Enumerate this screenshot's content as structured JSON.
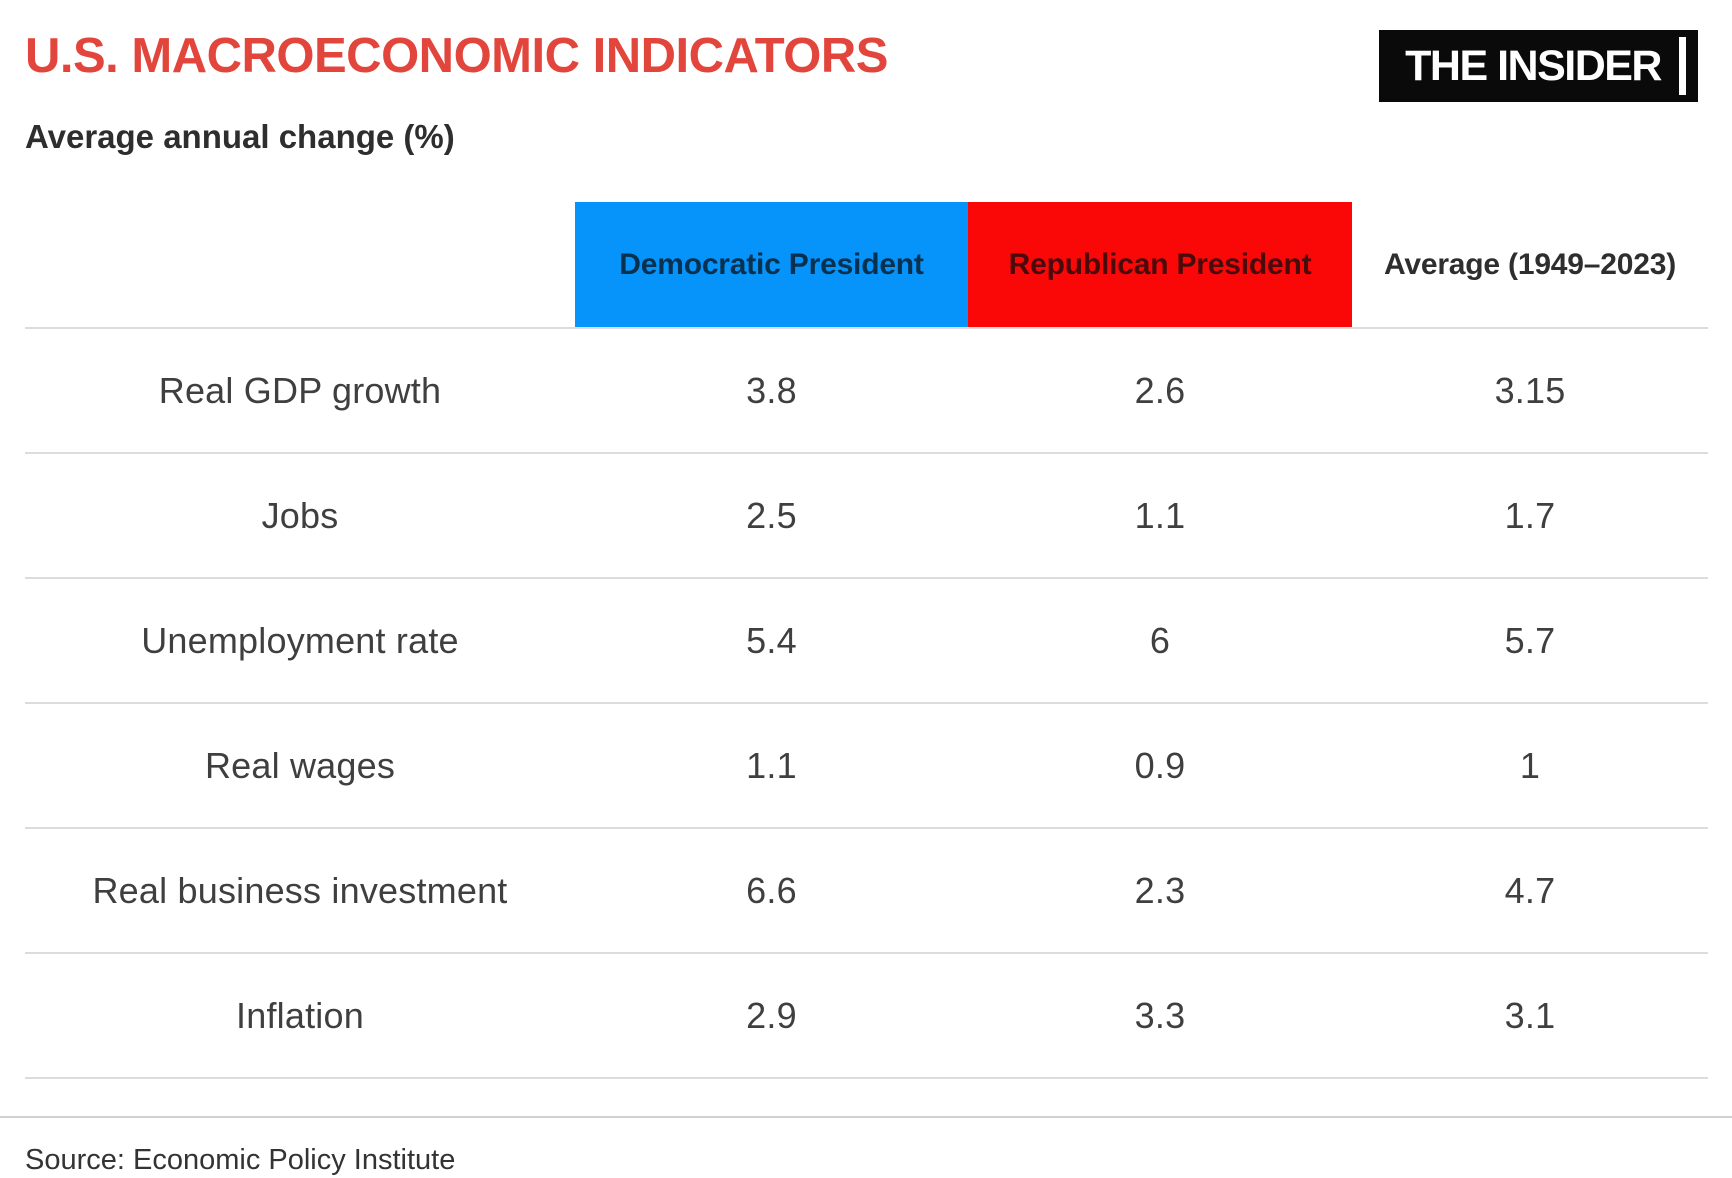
{
  "page": {
    "title": "U.S. MACROECONOMIC INDICATORS",
    "subtitle": "Average annual change (%)",
    "logo_text": "THE INSIDER",
    "source": "Source: Economic Policy Institute"
  },
  "colors": {
    "title_red": "#e2453c",
    "dem_blue": "#0694fb",
    "rep_red": "#fa0808",
    "text_gray": "#3f3f3f",
    "rule_gray": "#dcdcdc",
    "rule_dark": "#d2d2d2",
    "logo_bg": "#0a0a0a",
    "logo_text": "#ffffff"
  },
  "table": {
    "columns": [
      "",
      "Democratic President",
      "Republican President",
      "Average (1949–2023)"
    ],
    "rows": [
      {
        "label": "Real GDP growth",
        "dem": "3.8",
        "rep": "2.6",
        "avg": "3.15"
      },
      {
        "label": "Jobs",
        "dem": "2.5",
        "rep": "1.1",
        "avg": "1.7"
      },
      {
        "label": "Unemployment rate",
        "dem": "5.4",
        "rep": "6",
        "avg": "5.7"
      },
      {
        "label": "Real wages",
        "dem": "1.1",
        "rep": "0.9",
        "avg": "1"
      },
      {
        "label": "Real business investment",
        "dem": "6.6",
        "rep": "2.3",
        "avg": "4.7"
      },
      {
        "label": "Inflation",
        "dem": "2.9",
        "rep": "3.3",
        "avg": "3.1"
      }
    ]
  },
  "chart_data": {
    "type": "table",
    "title": "U.S. MACROECONOMIC INDICATORS",
    "subtitle": "Average annual change (%)",
    "categories": [
      "Real GDP growth",
      "Jobs",
      "Unemployment rate",
      "Real wages",
      "Real business investment",
      "Inflation"
    ],
    "series": [
      {
        "name": "Democratic President",
        "values": [
          3.8,
          2.5,
          5.4,
          1.1,
          6.6,
          2.9
        ]
      },
      {
        "name": "Republican President",
        "values": [
          2.6,
          1.1,
          6,
          0.9,
          2.3,
          3.3
        ]
      },
      {
        "name": "Average (1949–2023)",
        "values": [
          3.15,
          1.7,
          5.7,
          1,
          4.7,
          3.1
        ]
      }
    ],
    "source": "Source: Economic Policy Institute",
    "legend_position": "column-headers",
    "grid": "horizontal-rules-only"
  }
}
